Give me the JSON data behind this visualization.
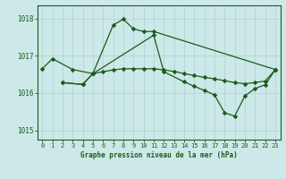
{
  "title": "Graphe pression niveau de la mer (hPa)",
  "background_color": "#cce8e8",
  "line_color": "#1a5c1a",
  "grid_color": "#aad4d4",
  "xlim": [
    -0.5,
    23.5
  ],
  "ylim": [
    1014.75,
    1018.35
  ],
  "yticks": [
    1015,
    1016,
    1017,
    1018
  ],
  "xticks": [
    0,
    1,
    2,
    3,
    4,
    5,
    6,
    7,
    8,
    9,
    10,
    11,
    12,
    13,
    14,
    15,
    16,
    17,
    18,
    19,
    20,
    21,
    22,
    23
  ],
  "curve1_x": [
    0,
    1,
    3,
    5,
    7,
    8,
    9,
    10,
    11,
    23
  ],
  "curve1_y": [
    1016.65,
    1016.92,
    1016.63,
    1016.52,
    1017.82,
    1017.98,
    1017.72,
    1017.65,
    1017.65,
    1016.63
  ],
  "curve2_x": [
    2,
    4,
    5,
    6,
    7,
    8,
    9,
    10,
    11,
    12,
    13,
    14,
    15,
    16,
    17,
    18,
    19,
    20,
    21,
    22,
    23
  ],
  "curve2_y": [
    1016.28,
    1016.23,
    1016.52,
    1016.57,
    1016.62,
    1016.65,
    1016.65,
    1016.65,
    1016.65,
    1016.62,
    1016.58,
    1016.52,
    1016.47,
    1016.42,
    1016.38,
    1016.33,
    1016.28,
    1016.25,
    1016.28,
    1016.32,
    1016.62
  ],
  "curve3_x": [
    2,
    4,
    5,
    11,
    12,
    14,
    15,
    16,
    17,
    18,
    19,
    20,
    21,
    22,
    23
  ],
  "curve3_y": [
    1016.28,
    1016.23,
    1016.52,
    1017.55,
    1016.57,
    1016.3,
    1016.18,
    1016.07,
    1015.95,
    1015.47,
    1015.38,
    1015.92,
    1016.12,
    1016.22,
    1016.62
  ]
}
